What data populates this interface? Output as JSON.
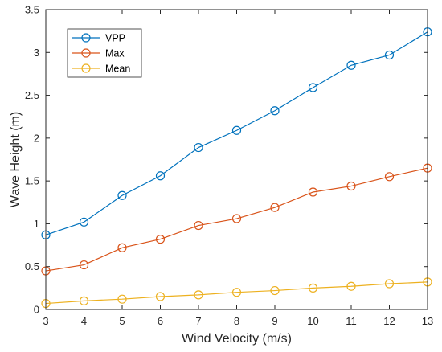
{
  "chart_data": {
    "type": "line",
    "title": "",
    "xlabel": "Wind Velocity (m/s)",
    "ylabel": "Wave Height (m)",
    "x": [
      3,
      4,
      5,
      6,
      7,
      8,
      9,
      10,
      11,
      12,
      13
    ],
    "xlim": [
      3,
      13
    ],
    "ylim": [
      0,
      3.5
    ],
    "xticks": [
      "3",
      "4",
      "5",
      "6",
      "7",
      "8",
      "9",
      "10",
      "11",
      "12",
      "13"
    ],
    "yticks": [
      "0",
      "0.5",
      "1",
      "1.5",
      "2",
      "2.5",
      "3",
      "3.5"
    ],
    "grid": false,
    "legend_position": "top-left",
    "marker": "circle-open",
    "series": [
      {
        "name": "VPP",
        "color": "#0072BD",
        "values": [
          0.87,
          1.02,
          1.33,
          1.56,
          1.89,
          2.09,
          2.32,
          2.59,
          2.85,
          2.97,
          3.24
        ]
      },
      {
        "name": "Max",
        "color": "#D95319",
        "values": [
          0.45,
          0.52,
          0.72,
          0.82,
          0.98,
          1.06,
          1.19,
          1.37,
          1.44,
          1.55,
          1.65
        ]
      },
      {
        "name": "Mean",
        "color": "#EDB120",
        "values": [
          0.07,
          0.1,
          0.12,
          0.15,
          0.17,
          0.2,
          0.22,
          0.25,
          0.27,
          0.3,
          0.32
        ]
      }
    ]
  }
}
